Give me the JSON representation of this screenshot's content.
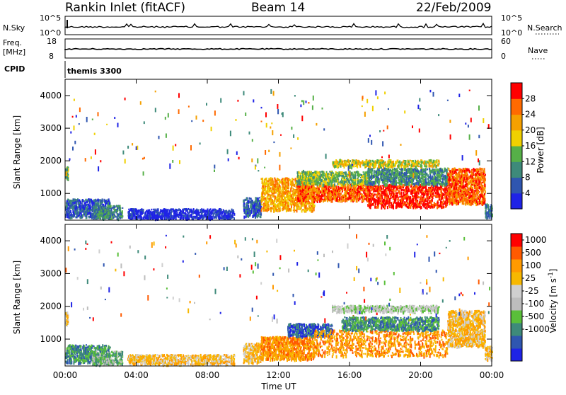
{
  "header": {
    "station": "Rankin Inlet (fitACF)",
    "beam": "Beam 14",
    "date": "22/Feb/2009"
  },
  "strip_labels": {
    "nsky": "N.Sky",
    "nsky_top": "10^5",
    "nsky_bottom": "10^0",
    "nsearch": "N.Search",
    "nsearch_top": "10^5",
    "nsearch_bottom": "10^0",
    "freq": "Freq.",
    "freq_unit": "[MHz]",
    "freq_top": "18",
    "freq_bottom": "8",
    "nave": "Nave",
    "nave_top": "60",
    "nave_bottom": "0",
    "cpid": "CPID",
    "cpid_value": "themis 3300"
  },
  "colors": {
    "power": [
      "#1f23e6",
      "#2f56b0",
      "#3e8a7a",
      "#56b048",
      "#f0d000",
      "#f5a000",
      "#ff6a00",
      "#ff0000"
    ],
    "velocity": [
      "#ff0000",
      "#ff5a00",
      "#ff9a00",
      "#f7b800",
      "#cfcfcf",
      "#bdbdbd",
      "#5abf3a",
      "#3e8a7a",
      "#2f56b0",
      "#1f23e6"
    ]
  },
  "chart_data": [
    {
      "type": "heatmap",
      "panel": "power",
      "ylabel": "Slant Range [km]",
      "yticks": [
        "1000",
        "2000",
        "3000",
        "4000"
      ],
      "ylim": [
        180,
        4500
      ],
      "xlim_hours": [
        0,
        24
      ],
      "colorbar_label": "Power [dB]",
      "colorbar_ticks": [
        "4",
        "8",
        "12",
        "16",
        "20",
        "24",
        "28"
      ],
      "colorbar_range": [
        0,
        32
      ],
      "echo_regions": [
        {
          "t0": 0.0,
          "t1": 0.15,
          "r0": 1450,
          "r1": 1850,
          "level": 3
        },
        {
          "t0": 0.0,
          "t1": 2.5,
          "r0": 300,
          "r1": 850,
          "level": 1
        },
        {
          "t0": 1.5,
          "t1": 3.2,
          "r0": 250,
          "r1": 650,
          "level": 2
        },
        {
          "t0": 3.5,
          "t1": 9.5,
          "r0": 250,
          "r1": 550,
          "level": 0
        },
        {
          "t0": 10.0,
          "t1": 11.0,
          "r0": 300,
          "r1": 900,
          "level": 1
        },
        {
          "t0": 11.0,
          "t1": 14.0,
          "r0": 500,
          "r1": 1500,
          "level": 5
        },
        {
          "t0": 13.0,
          "t1": 17.0,
          "r0": 800,
          "r1": 1300,
          "level": 6
        },
        {
          "t0": 13.0,
          "t1": 17.0,
          "r0": 1300,
          "r1": 1700,
          "level": 3
        },
        {
          "t0": 17.0,
          "t1": 21.5,
          "r0": 600,
          "r1": 1300,
          "level": 7
        },
        {
          "t0": 17.0,
          "t1": 21.5,
          "r0": 1300,
          "r1": 1800,
          "level": 2
        },
        {
          "t0": 15.0,
          "t1": 21.0,
          "r0": 1850,
          "r1": 2050,
          "level": 4
        },
        {
          "t0": 21.5,
          "t1": 23.6,
          "r0": 700,
          "r1": 1800,
          "level": 6
        },
        {
          "t0": 23.6,
          "t1": 24.0,
          "r0": 300,
          "r1": 700,
          "level": 2
        }
      ]
    },
    {
      "type": "heatmap",
      "panel": "velocity",
      "ylabel": "Slant Range [km]",
      "yticks": [
        "1000",
        "2000",
        "3000",
        "4000"
      ],
      "ylim": [
        180,
        4500
      ],
      "xlabel": "Time UT",
      "xticks": [
        "00:00",
        "04:00",
        "08:00",
        "12:00",
        "16:00",
        "20:00",
        "00:00"
      ],
      "xlim_hours": [
        0,
        24
      ],
      "colorbar_label": "Velocity [m s^-1]",
      "colorbar_ticks": [
        "1000",
        "500",
        "100",
        "25",
        "-25",
        "-100",
        "-500",
        "-1000"
      ],
      "echo_regions": [
        {
          "t0": 0.0,
          "t1": 0.15,
          "r0": 1450,
          "r1": 1850,
          "level": 3
        },
        {
          "t0": 0.0,
          "t1": 2.5,
          "r0": 300,
          "r1": 850,
          "level": 7
        },
        {
          "t0": 1.5,
          "t1": 3.2,
          "r0": 250,
          "r1": 650,
          "level": 6
        },
        {
          "t0": 3.5,
          "t1": 9.5,
          "r0": 250,
          "r1": 550,
          "level": 3
        },
        {
          "t0": 10.0,
          "t1": 11.0,
          "r0": 300,
          "r1": 900,
          "level": 3
        },
        {
          "t0": 11.0,
          "t1": 14.0,
          "r0": 400,
          "r1": 1100,
          "level": 2
        },
        {
          "t0": 12.5,
          "t1": 15.0,
          "r0": 1100,
          "r1": 1500,
          "level": 8
        },
        {
          "t0": 14.0,
          "t1": 21.5,
          "r0": 500,
          "r1": 1300,
          "level": 2
        },
        {
          "t0": 15.5,
          "t1": 21.0,
          "r0": 1300,
          "r1": 1700,
          "level": 7
        },
        {
          "t0": 15.0,
          "t1": 21.0,
          "r0": 1850,
          "r1": 2050,
          "level": 5
        },
        {
          "t0": 21.5,
          "t1": 23.6,
          "r0": 800,
          "r1": 1900,
          "level": 3
        },
        {
          "t0": 23.6,
          "t1": 24.0,
          "r0": 400,
          "r1": 800,
          "level": 3
        }
      ]
    }
  ]
}
